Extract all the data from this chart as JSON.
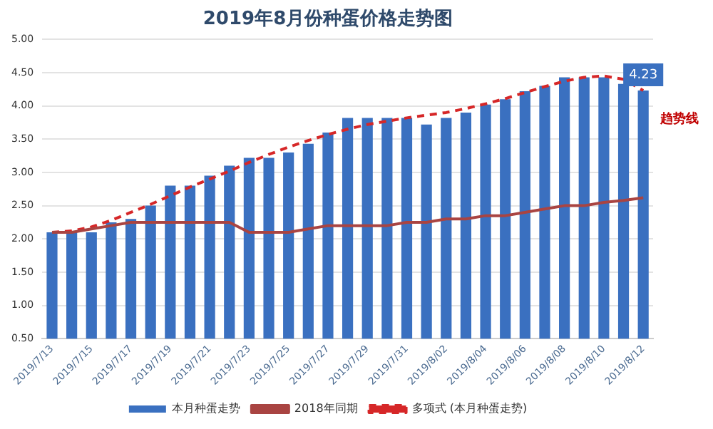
{
  "chart_data": {
    "type": "bar",
    "title": "2019年8月份种蛋价格走势图",
    "categories": [
      "2019/7/13",
      null,
      "2019/7/15",
      null,
      "2019/7/17",
      null,
      "2019/7/19",
      null,
      "2019/7/21",
      null,
      "2019/7/23",
      null,
      "2019/7/25",
      null,
      "2019/7/27",
      null,
      "2019/7/29",
      null,
      "2019/7/31",
      null,
      "2019/8/02",
      null,
      "2019/8/04",
      null,
      "2019/8/06",
      null,
      "2019/8/08",
      null,
      "2019/8/10",
      null,
      "2019/8/12"
    ],
    "series": [
      {
        "name": "本月种蛋走势",
        "color": "#3a70c0",
        "values": [
          2.1,
          2.1,
          2.1,
          2.25,
          2.3,
          2.5,
          2.8,
          2.8,
          2.95,
          3.1,
          3.22,
          3.22,
          3.3,
          3.43,
          3.6,
          3.82,
          3.82,
          3.82,
          3.82,
          3.72,
          3.82,
          3.9,
          4.02,
          4.1,
          4.22,
          4.3,
          4.43,
          4.43,
          4.43,
          4.33,
          4.23
        ],
        "value_labels": [
          null,
          null,
          null,
          null,
          null,
          null,
          null,
          null,
          null,
          null,
          null,
          null,
          null,
          null,
          null,
          null,
          null,
          null,
          null,
          null,
          null,
          null,
          null,
          null,
          null,
          null,
          null,
          null,
          null,
          null,
          "4.23"
        ]
      },
      {
        "name": "2018年同期",
        "type": "line",
        "color": "#a94442",
        "line_style": "solid",
        "values": [
          2.1,
          2.1,
          2.15,
          2.2,
          2.25,
          2.25,
          2.25,
          2.25,
          2.25,
          2.25,
          2.1,
          2.1,
          2.1,
          2.15,
          2.2,
          2.2,
          2.2,
          2.2,
          2.25,
          2.25,
          2.3,
          2.3,
          2.35,
          2.35,
          2.4,
          2.45,
          2.5,
          2.5,
          2.55,
          2.58,
          2.62
        ]
      },
      {
        "name": "多项式 (本月种蛋走势)",
        "type": "line",
        "color": "#d62728",
        "line_style": "dashed",
        "values": [
          2.1,
          2.12,
          2.18,
          2.28,
          2.4,
          2.52,
          2.65,
          2.78,
          2.9,
          3.02,
          3.15,
          3.27,
          3.38,
          3.48,
          3.57,
          3.65,
          3.72,
          3.77,
          3.82,
          3.86,
          3.9,
          3.96,
          4.03,
          4.11,
          4.2,
          4.29,
          4.37,
          4.43,
          4.45,
          4.4,
          4.23
        ]
      }
    ],
    "annotations": [
      {
        "text": "趋势线",
        "x": "2019/8/12",
        "y": 3.8
      }
    ],
    "ylim": [
      0.5,
      5
    ],
    "yticks": [
      {
        "value": 0.5,
        "label": "0.50"
      },
      {
        "value": 1,
        "label": "1.00"
      },
      {
        "value": 1.5,
        "label": "1.50"
      },
      {
        "value": 2,
        "label": "2.00"
      },
      {
        "value": 2.5,
        "label": "2.50"
      },
      {
        "value": 3,
        "label": "3.00"
      },
      {
        "value": 3.5,
        "label": "3.50"
      },
      {
        "value": 4,
        "label": "4.00"
      },
      {
        "value": 4.5,
        "label": "4.50"
      },
      {
        "value": 5,
        "label": "5.00"
      }
    ],
    "grid": "y",
    "legend": "bottom",
    "marker": "none"
  }
}
